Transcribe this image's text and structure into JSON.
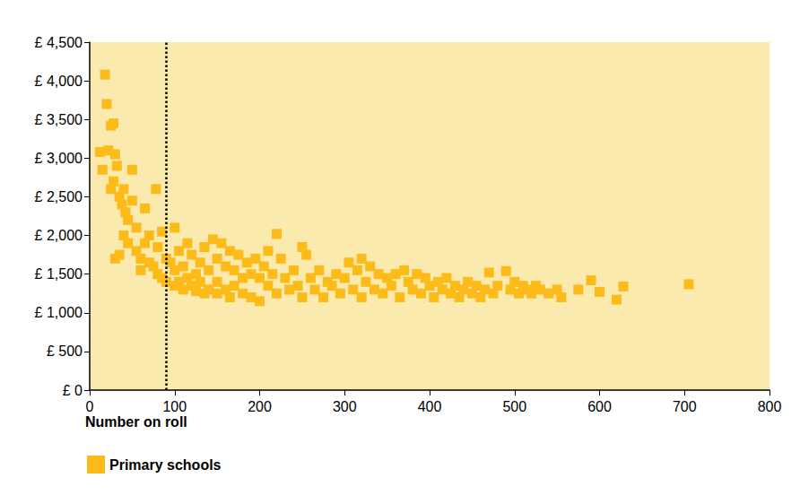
{
  "chart_data": {
    "type": "scatter",
    "x_label": "Number on roll",
    "xlim": [
      0,
      800
    ],
    "xticks": [
      0,
      100,
      200,
      300,
      400,
      500,
      600,
      700,
      800
    ],
    "ylim": [
      0,
      4500
    ],
    "yticks": [
      {
        "value": 0,
        "label": "£ 0"
      },
      {
        "value": 500,
        "label": "£ 500"
      },
      {
        "value": 1000,
        "label": "£ 1,000"
      },
      {
        "value": 1500,
        "label": "£ 1,500"
      },
      {
        "value": 2000,
        "label": "£ 2,000"
      },
      {
        "value": 2500,
        "label": "£ 2,500"
      },
      {
        "value": 3000,
        "label": "£ 3,000"
      },
      {
        "value": 3500,
        "label": "£ 3,500"
      },
      {
        "value": 4000,
        "label": "£ 4,000"
      },
      {
        "value": 4500,
        "label": "£ 4,500"
      }
    ],
    "grid": false,
    "legend": "bottom-left",
    "marker": "square",
    "vline_x": 90,
    "x": [
      12,
      15,
      18,
      20,
      22,
      25,
      28,
      30,
      32,
      28,
      25,
      35,
      38,
      40,
      42,
      45,
      30,
      35,
      40,
      45,
      50,
      50,
      55,
      55,
      60,
      60,
      65,
      65,
      70,
      70,
      75,
      78,
      80,
      80,
      85,
      85,
      90,
      90,
      95,
      100,
      100,
      100,
      105,
      105,
      110,
      110,
      115,
      115,
      120,
      120,
      125,
      125,
      130,
      130,
      135,
      135,
      140,
      140,
      145,
      150,
      150,
      150,
      155,
      160,
      160,
      165,
      165,
      170,
      170,
      175,
      180,
      180,
      185,
      190,
      190,
      195,
      200,
      200,
      205,
      210,
      210,
      215,
      220,
      220,
      225,
      230,
      235,
      240,
      245,
      250,
      250,
      255,
      260,
      265,
      270,
      275,
      280,
      285,
      290,
      295,
      300,
      305,
      310,
      315,
      320,
      320,
      325,
      330,
      335,
      340,
      345,
      350,
      355,
      360,
      365,
      370,
      375,
      380,
      385,
      390,
      395,
      400,
      405,
      410,
      415,
      420,
      425,
      430,
      435,
      440,
      445,
      450,
      455,
      460,
      465,
      470,
      475,
      480,
      490,
      495,
      500,
      505,
      510,
      515,
      520,
      525,
      530,
      540,
      550,
      555,
      575,
      590,
      600,
      620,
      628,
      705
    ],
    "series": [
      {
        "name": "Primary schools",
        "color": "#FDBB1A",
        "values": [
          3080,
          2850,
          4080,
          3700,
          3100,
          3420,
          3450,
          3050,
          2900,
          2700,
          2600,
          2500,
          2400,
          2600,
          2300,
          2200,
          1700,
          1750,
          2000,
          1900,
          2850,
          2450,
          2100,
          1800,
          1700,
          1550,
          2350,
          1900,
          2000,
          1650,
          1600,
          2600,
          1850,
          1500,
          1450,
          2050,
          1700,
          1400,
          1650,
          2100,
          1550,
          1350,
          1800,
          1400,
          1600,
          1300,
          1900,
          1450,
          1750,
          1350,
          1500,
          1280,
          1650,
          1400,
          1850,
          1250,
          1550,
          1300,
          1950,
          1700,
          1400,
          1250,
          1900,
          1600,
          1300,
          1800,
          1200,
          1550,
          1350,
          1750,
          1450,
          1250,
          1650,
          1500,
          1200,
          1700,
          1450,
          1150,
          1600,
          1350,
          1800,
          1500,
          2020,
          1250,
          1700,
          1450,
          1300,
          1550,
          1350,
          1850,
          1200,
          1750,
          1450,
          1300,
          1550,
          1200,
          1400,
          1350,
          1500,
          1250,
          1450,
          1650,
          1300,
          1550,
          1700,
          1200,
          1400,
          1600,
          1300,
          1500,
          1250,
          1450,
          1350,
          1500,
          1200,
          1550,
          1400,
          1300,
          1500,
          1250,
          1450,
          1350,
          1200,
          1400,
          1300,
          1450,
          1250,
          1350,
          1200,
          1300,
          1400,
          1250,
          1350,
          1200,
          1300,
          1520,
          1250,
          1350,
          1540,
          1300,
          1400,
          1250,
          1350,
          1300,
          1250,
          1350,
          1300,
          1250,
          1300,
          1200,
          1300,
          1420,
          1270,
          1170,
          1340,
          1370
        ]
      }
    ]
  }
}
